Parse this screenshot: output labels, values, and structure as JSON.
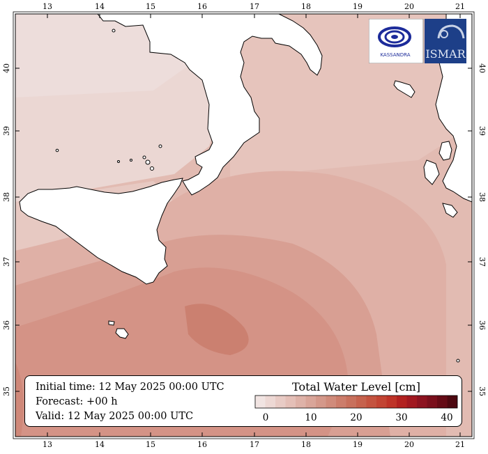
{
  "map": {
    "title": "Total Water Level [cm]",
    "x_ticks": [
      "13",
      "14",
      "15",
      "16",
      "17",
      "18",
      "19",
      "20",
      "21"
    ],
    "y_ticks": [
      "40",
      "39",
      "38",
      "37",
      "36",
      "35"
    ]
  },
  "info": {
    "initial_time": "Initial time: 12 May 2025 00:00 UTC",
    "forecast": "Forecast: +00 h",
    "valid": "Valid: 12 May 2025 00:00 UTC"
  },
  "colorbar": {
    "labels": [
      "0",
      "10",
      "20",
      "30",
      "40"
    ],
    "colors": [
      "#f1e4e2",
      "#edd8d4",
      "#e8cbc5",
      "#e4bfb7",
      "#deb2a8",
      "#d9a599",
      "#d4988a",
      "#d08b7b",
      "#cc7d6b",
      "#c8705c",
      "#c6624d",
      "#c4533f",
      "#c24433",
      "#be3328",
      "#b22120",
      "#a11820",
      "#8d1320",
      "#7a0f1c",
      "#650b16",
      "#4d0810"
    ]
  },
  "logos": {
    "left_text": "KASSANDRA",
    "right_text": "ISMAR"
  }
}
